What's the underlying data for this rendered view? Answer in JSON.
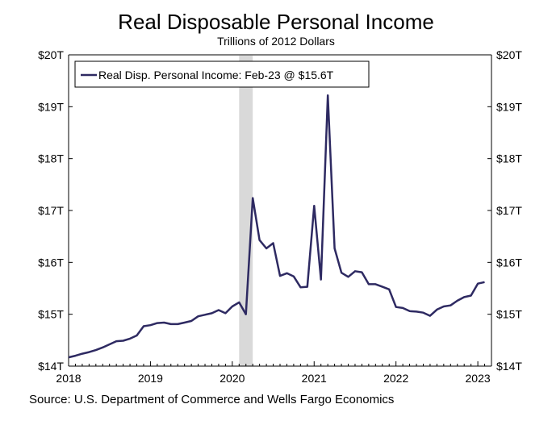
{
  "header": {
    "title": "Real Disposable Personal Income",
    "subtitle": "Trillions of 2012 Dollars"
  },
  "footer": {
    "source": "Source: U.S. Department of Commerce and Wells Fargo Economics"
  },
  "colors": {
    "series": "#2e2a62",
    "recession": "#d9d9d9",
    "axis": "#000000"
  },
  "chart_data": {
    "type": "line",
    "title": "Real Disposable Personal Income",
    "subtitle": "Trillions of 2012 Dollars",
    "xlabel": "",
    "ylabel": "",
    "x_ticks": [
      "2018",
      "2019",
      "2020",
      "2021",
      "2022",
      "2023"
    ],
    "y_ticks_left": [
      "$14T",
      "$15T",
      "$16T",
      "$17T",
      "$18T",
      "$19T",
      "$20T"
    ],
    "y_ticks_right": [
      "$14T",
      "$15T",
      "$16T",
      "$17T",
      "$18T",
      "$19T",
      "$20T"
    ],
    "ylim": [
      14,
      20
    ],
    "xlim": [
      "2018-01",
      "2023-03"
    ],
    "grid": false,
    "legend": {
      "placement": "top-left",
      "entries": [
        "Real Disp. Personal Income: Feb-23 @ $15.6T"
      ]
    },
    "recession_shading": {
      "start": "2020-02",
      "end": "2020-04"
    },
    "series": [
      {
        "name": "Real Disp. Personal Income: Feb-23 @ $15.6T",
        "x": [
          "2018-01",
          "2018-02",
          "2018-03",
          "2018-04",
          "2018-05",
          "2018-06",
          "2018-07",
          "2018-08",
          "2018-09",
          "2018-10",
          "2018-11",
          "2018-12",
          "2019-01",
          "2019-02",
          "2019-03",
          "2019-04",
          "2019-05",
          "2019-06",
          "2019-07",
          "2019-08",
          "2019-09",
          "2019-10",
          "2019-11",
          "2019-12",
          "2020-01",
          "2020-02",
          "2020-03",
          "2020-04",
          "2020-05",
          "2020-06",
          "2020-07",
          "2020-08",
          "2020-09",
          "2020-10",
          "2020-11",
          "2020-12",
          "2021-01",
          "2021-02",
          "2021-03",
          "2021-04",
          "2021-05",
          "2021-06",
          "2021-07",
          "2021-08",
          "2021-09",
          "2021-10",
          "2021-11",
          "2021-12",
          "2022-01",
          "2022-02",
          "2022-03",
          "2022-04",
          "2022-05",
          "2022-06",
          "2022-07",
          "2022-08",
          "2022-09",
          "2022-10",
          "2022-11",
          "2022-12",
          "2023-01",
          "2023-02"
        ],
        "values": [
          14.17,
          14.2,
          14.24,
          14.27,
          14.31,
          14.36,
          14.42,
          14.48,
          14.49,
          14.53,
          14.59,
          14.77,
          14.79,
          14.83,
          14.84,
          14.81,
          14.81,
          14.84,
          14.87,
          14.96,
          14.99,
          15.02,
          15.08,
          15.02,
          15.15,
          15.23,
          15.0,
          17.24,
          16.43,
          16.27,
          16.37,
          15.74,
          15.79,
          15.73,
          15.52,
          15.53,
          17.09,
          15.67,
          19.22,
          16.27,
          15.8,
          15.72,
          15.83,
          15.81,
          15.58,
          15.58,
          15.53,
          15.48,
          15.14,
          15.12,
          15.06,
          15.05,
          15.03,
          14.97,
          15.09,
          15.15,
          15.17,
          15.26,
          15.33,
          15.36,
          15.59,
          15.62
        ]
      }
    ]
  }
}
